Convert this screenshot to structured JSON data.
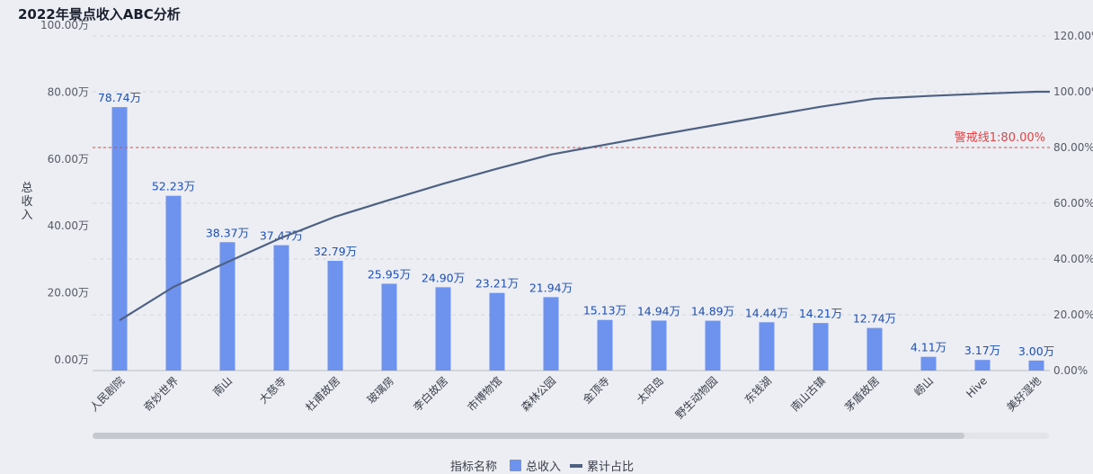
{
  "chart_data": {
    "type": "bar",
    "title": "2022年景点收入ABC分析",
    "ylabel": "总收入",
    "categories": [
      "人民剧院",
      "奇妙世界",
      "南山",
      "大慈寺",
      "杜甫故居",
      "玻璃房",
      "李白故居",
      "市博物馆",
      "森林公园",
      "金顶寺",
      "太阳岛",
      "野生动物园",
      "东钱湖",
      "南山古镇",
      "茅盾故居",
      "崂山",
      "Hive",
      "美好湿地"
    ],
    "series": [
      {
        "name": "总收入",
        "type": "bar",
        "axis": "left",
        "values": [
          78.74,
          52.23,
          38.37,
          37.47,
          32.79,
          25.95,
          24.9,
          23.21,
          21.94,
          15.13,
          14.94,
          14.89,
          14.44,
          14.21,
          12.74,
          4.11,
          3.17,
          3.0
        ],
        "labels": [
          "78.74万",
          "52.23万",
          "38.37万",
          "37.47万",
          "32.79万",
          "25.95万",
          "24.90万",
          "23.21万",
          "21.94万",
          "15.13万",
          "14.94万",
          "14.89万",
          "14.44万",
          "14.21万",
          "12.74万",
          "4.11万",
          "3.17万",
          "3.00万"
        ]
      },
      {
        "name": "累计占比",
        "type": "line",
        "axis": "right",
        "values": [
          18.0,
          30.0,
          38.9,
          47.6,
          55.2,
          61.2,
          67.0,
          72.4,
          77.5,
          81.0,
          84.5,
          87.9,
          91.3,
          94.6,
          97.5,
          98.5,
          99.3,
          100.0
        ]
      }
    ],
    "ylim_left": [
      0,
      100
    ],
    "ylim_right": [
      0,
      120
    ],
    "yticks_left": [
      "0.00万",
      "20.00万",
      "40.00万",
      "60.00万",
      "80.00万",
      "100.00万"
    ],
    "yticks_right": [
      "0.00%",
      "20.00%",
      "40.00%",
      "60.00%",
      "80.00%",
      "100.00%",
      "120.00%"
    ],
    "threshold": {
      "value": 80,
      "axis": "right",
      "label": "警戒线1:80.00%",
      "color": "#e04646"
    },
    "grid": true,
    "legend": {
      "position": "bottom",
      "title": "指标名称",
      "items": [
        "总收入",
        "累计占比"
      ]
    },
    "colors": {
      "bar": "#6e93ee",
      "line": "#4e6183",
      "label": "#1f4fb0"
    }
  }
}
